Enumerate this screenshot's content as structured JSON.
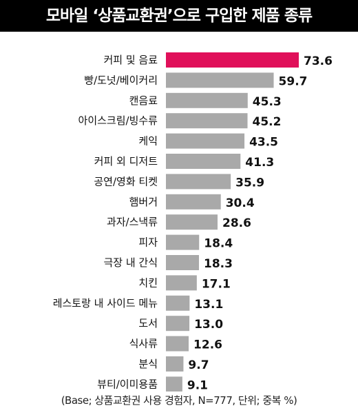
{
  "title": "모바일 ‘상품교환권’으로 구입한 제품 종류",
  "footnote": "(Base; 상품교환권 사용 경험자, N=777, 단위; 중복 %)",
  "colors": {
    "highlight": "#e0105a",
    "bar": "#a9a9a9",
    "title_bg": "#000000"
  },
  "chart_data": {
    "type": "bar",
    "orientation": "horizontal",
    "title": "모바일 ‘상품교환권’으로 구입한 제품 종류",
    "categories": [
      "커피 및 음료",
      "빵/도넛/베이커리",
      "캔음료",
      "아이스크림/빙수류",
      "케익",
      "커피 외 디저트",
      "공연/영화 티켓",
      "햄버거",
      "과자/스낵류",
      "피자",
      "극장 내 간식",
      "치킨",
      "레스토랑 내 사이드 메뉴",
      "도서",
      "식사류",
      "분식",
      "뷰티/이미용품"
    ],
    "values": [
      73.6,
      59.7,
      45.3,
      45.2,
      43.5,
      41.3,
      35.9,
      30.4,
      28.6,
      18.4,
      18.3,
      17.1,
      13.1,
      13.0,
      12.6,
      9.7,
      9.1
    ],
    "value_labels": [
      "73.6",
      "59.7",
      "45.3",
      "45.2",
      "43.5",
      "41.3",
      "35.9",
      "30.4",
      "28.6",
      "18.4",
      "18.3",
      "17.1",
      "13.1",
      "13.0",
      "12.6",
      "9.7",
      "9.1"
    ],
    "highlight_index": 0,
    "xlim": [
      0,
      73.6
    ],
    "grid": false,
    "legend": "none"
  }
}
